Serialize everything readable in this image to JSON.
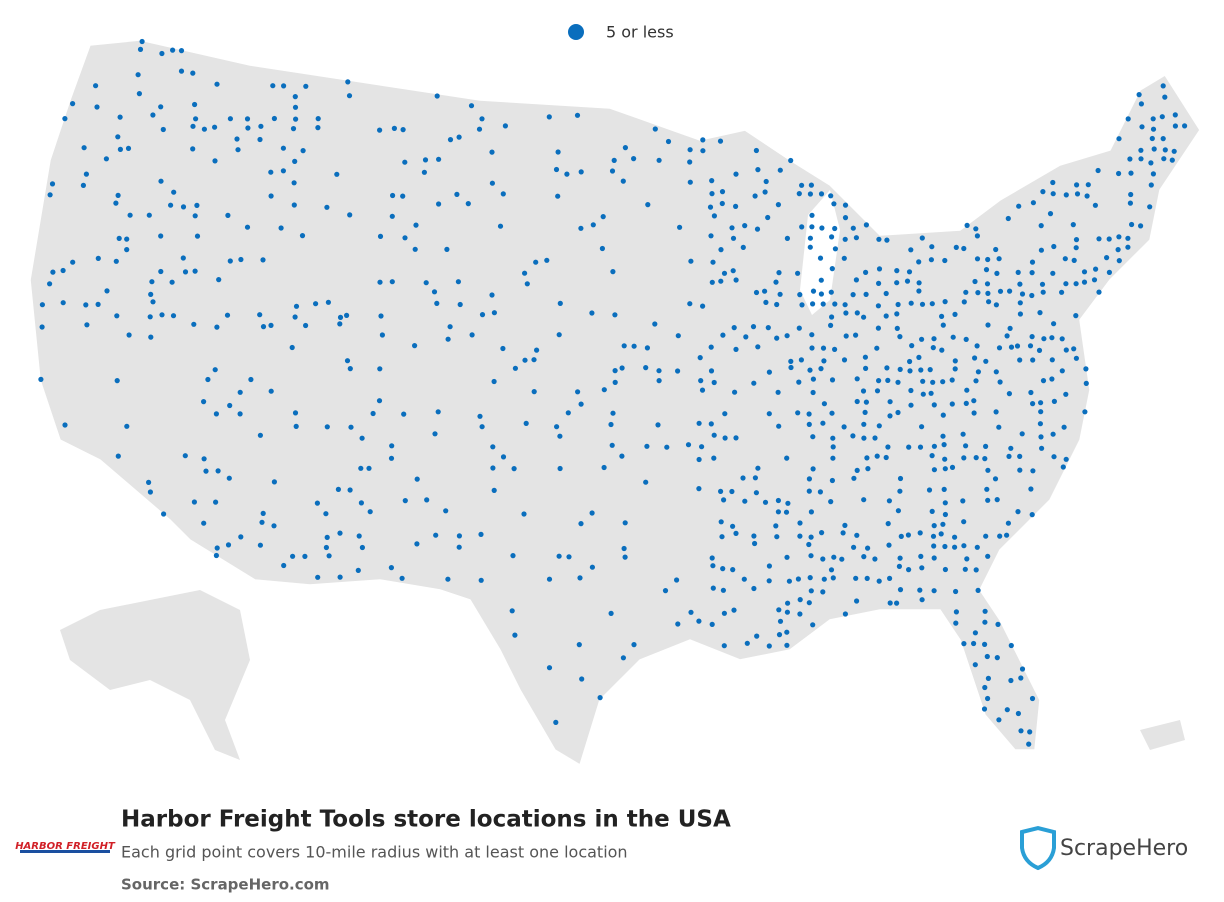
{
  "legend": {
    "label": "5 or less"
  },
  "footer": {
    "title": "Harbor Freight Tools store locations in the USA",
    "subtitle": "Each grid point covers 10-mile radius with at least one location",
    "source": "Source: ScrapeHero.com"
  },
  "logo": {
    "text": "HARBOR FREIGHT"
  },
  "brand": {
    "name": "ScrapeHero"
  }
}
